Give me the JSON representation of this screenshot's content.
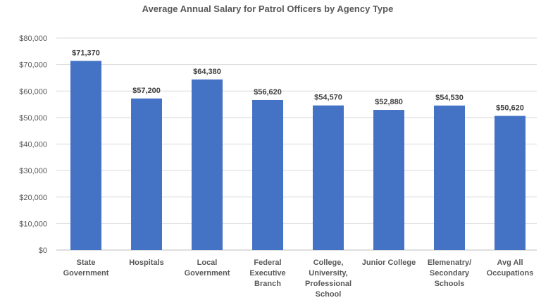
{
  "chart_data": {
    "type": "bar",
    "title": "Average Annual Salary for Patrol Officers by Agency Type",
    "xlabel": "",
    "ylabel": "",
    "categories": [
      [
        "State",
        "Government"
      ],
      [
        "Hospitals"
      ],
      [
        "Local",
        "Government"
      ],
      [
        "Federal",
        "Executive",
        "Branch"
      ],
      [
        "College,",
        "University,",
        "Professional",
        "School"
      ],
      [
        "Junior College"
      ],
      [
        "Elemenatry/",
        "Secondary",
        "Schools"
      ],
      [
        "Avg All",
        "Occupations"
      ]
    ],
    "values": [
      71370,
      57200,
      64380,
      56620,
      54570,
      52880,
      54530,
      50620
    ],
    "data_labels": [
      "$71,370",
      "$57,200",
      "$64,380",
      "$56,620",
      "$54,570",
      "$52,880",
      "$54,530",
      "$50,620"
    ],
    "ylim": [
      0,
      80000
    ],
    "yticks": [
      0,
      10000,
      20000,
      30000,
      40000,
      50000,
      60000,
      70000,
      80000
    ],
    "ytick_labels": [
      "$0",
      "$10,000",
      "$20,000",
      "$30,000",
      "$40,000",
      "$50,000",
      "$60,000",
      "$70,000",
      "$80,000"
    ],
    "grid": true,
    "legend": "none",
    "bar_color": "#4472C4",
    "grid_color": "#D9D9D9"
  }
}
